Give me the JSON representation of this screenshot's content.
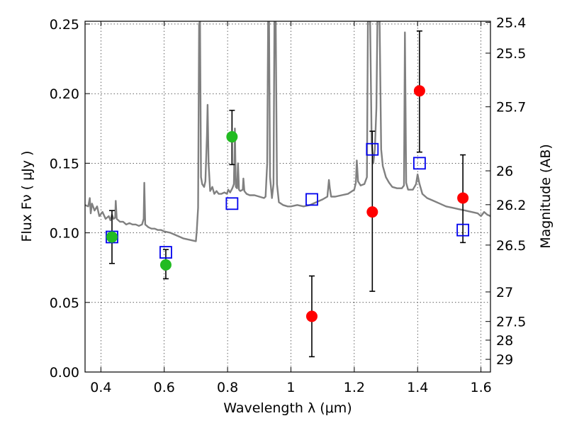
{
  "chart_data": {
    "type": "scatter",
    "xlabel": "Wavelength  λ (μm)",
    "ylabel": "Flux  Fν  ( μJy )",
    "ylabel_right": "Magnitude (AB)",
    "xlim": [
      0.35,
      1.63
    ],
    "ylim": [
      0.0,
      0.252
    ],
    "grid": true,
    "x_ticks": [
      0.4,
      0.6,
      0.8,
      1.0,
      1.2,
      1.4,
      1.6
    ],
    "x_tick_labels": [
      "0.4",
      "0.6",
      "0.8",
      "1",
      "1.2",
      "1.4",
      "1.6"
    ],
    "y_ticks": [
      0.0,
      0.05,
      0.1,
      0.15,
      0.2,
      0.25
    ],
    "y_tick_labels": [
      "0.00",
      "0.05",
      "0.10",
      "0.15",
      "0.20",
      "0.25"
    ],
    "right_ticks": [
      {
        "label": "25.4",
        "mag": 25.4
      },
      {
        "label": "25.5",
        "mag": 25.5
      },
      {
        "label": "25.7",
        "mag": 25.7
      },
      {
        "label": "26",
        "mag": 26.0
      },
      {
        "label": "26.2",
        "mag": 26.2
      },
      {
        "label": "26.5",
        "mag": 26.5
      },
      {
        "label": "27",
        "mag": 27.0
      },
      {
        "label": "27.5",
        "mag": 27.5
      },
      {
        "label": "28",
        "mag": 28.0
      },
      {
        "label": "29",
        "mag": 29.0
      }
    ],
    "series": [
      {
        "name": "green detections",
        "marker": "circle",
        "color": "#22bb22",
        "points": [
          {
            "x": 0.435,
            "y": 0.097,
            "err_low": 0.078,
            "err_high": 0.116
          },
          {
            "x": 0.605,
            "y": 0.077,
            "err_low": 0.067,
            "err_high": 0.088
          },
          {
            "x": 0.814,
            "y": 0.169,
            "err_low": 0.149,
            "err_high": 0.188
          }
        ]
      },
      {
        "name": "red detections",
        "marker": "circle",
        "color": "#ff0000",
        "points": [
          {
            "x": 1.066,
            "y": 0.04,
            "err_low": 0.011,
            "err_high": 0.069
          },
          {
            "x": 1.257,
            "y": 0.115,
            "err_low": 0.058,
            "err_high": 0.173
          },
          {
            "x": 1.406,
            "y": 0.202,
            "err_low": 0.158,
            "err_high": 0.245
          },
          {
            "x": 1.543,
            "y": 0.125,
            "err_low": 0.093,
            "err_high": 0.156
          }
        ]
      },
      {
        "name": "model synthetic photometry",
        "marker": "square",
        "color": "#0000ee",
        "points": [
          {
            "x": 0.435,
            "y": 0.097
          },
          {
            "x": 0.605,
            "y": 0.086
          },
          {
            "x": 0.814,
            "y": 0.121
          },
          {
            "x": 1.066,
            "y": 0.124
          },
          {
            "x": 1.257,
            "y": 0.16
          },
          {
            "x": 1.406,
            "y": 0.15
          },
          {
            "x": 1.543,
            "y": 0.102
          }
        ]
      }
    ],
    "model_spectrum": {
      "name": "model spectrum",
      "color": "#808080",
      "points": [
        [
          0.35,
          0.12
        ],
        [
          0.36,
          0.119
        ],
        [
          0.365,
          0.125
        ],
        [
          0.368,
          0.114
        ],
        [
          0.372,
          0.121
        ],
        [
          0.38,
          0.116
        ],
        [
          0.388,
          0.119
        ],
        [
          0.395,
          0.112
        ],
        [
          0.405,
          0.115
        ],
        [
          0.415,
          0.11
        ],
        [
          0.425,
          0.112
        ],
        [
          0.43,
          0.109
        ],
        [
          0.435,
          0.113
        ],
        [
          0.44,
          0.11
        ],
        [
          0.445,
          0.111
        ],
        [
          0.447,
          0.123
        ],
        [
          0.45,
          0.11
        ],
        [
          0.46,
          0.108
        ],
        [
          0.47,
          0.108
        ],
        [
          0.48,
          0.106
        ],
        [
          0.49,
          0.107
        ],
        [
          0.5,
          0.106
        ],
        [
          0.51,
          0.106
        ],
        [
          0.52,
          0.105
        ],
        [
          0.53,
          0.106
        ],
        [
          0.535,
          0.11
        ],
        [
          0.537,
          0.136
        ],
        [
          0.54,
          0.106
        ],
        [
          0.55,
          0.104
        ],
        [
          0.56,
          0.103
        ],
        [
          0.57,
          0.103
        ],
        [
          0.58,
          0.102
        ],
        [
          0.59,
          0.102
        ],
        [
          0.6,
          0.101
        ],
        [
          0.62,
          0.1
        ],
        [
          0.64,
          0.098
        ],
        [
          0.66,
          0.096
        ],
        [
          0.68,
          0.095
        ],
        [
          0.7,
          0.094
        ],
        [
          0.703,
          0.102
        ],
        [
          0.707,
          0.118
        ],
        [
          0.71,
          0.25
        ],
        [
          0.713,
          0.252
        ],
        [
          0.716,
          0.14
        ],
        [
          0.72,
          0.135
        ],
        [
          0.726,
          0.133
        ],
        [
          0.73,
          0.137
        ],
        [
          0.735,
          0.17
        ],
        [
          0.737,
          0.192
        ],
        [
          0.74,
          0.15
        ],
        [
          0.745,
          0.13
        ],
        [
          0.752,
          0.133
        ],
        [
          0.758,
          0.128
        ],
        [
          0.765,
          0.13
        ],
        [
          0.772,
          0.128
        ],
        [
          0.78,
          0.128
        ],
        [
          0.79,
          0.129
        ],
        [
          0.798,
          0.128
        ],
        [
          0.802,
          0.131
        ],
        [
          0.808,
          0.129
        ],
        [
          0.815,
          0.132
        ],
        [
          0.82,
          0.135
        ],
        [
          0.823,
          0.175
        ],
        [
          0.826,
          0.133
        ],
        [
          0.83,
          0.132
        ],
        [
          0.833,
          0.15
        ],
        [
          0.836,
          0.131
        ],
        [
          0.84,
          0.13
        ],
        [
          0.848,
          0.131
        ],
        [
          0.85,
          0.139
        ],
        [
          0.853,
          0.13
        ],
        [
          0.86,
          0.128
        ],
        [
          0.87,
          0.127
        ],
        [
          0.885,
          0.127
        ],
        [
          0.9,
          0.126
        ],
        [
          0.915,
          0.125
        ],
        [
          0.92,
          0.126
        ],
        [
          0.925,
          0.15
        ],
        [
          0.928,
          0.252
        ],
        [
          0.931,
          0.252
        ],
        [
          0.934,
          0.14
        ],
        [
          0.94,
          0.125
        ],
        [
          0.945,
          0.135
        ],
        [
          0.948,
          0.252
        ],
        [
          0.952,
          0.252
        ],
        [
          0.956,
          0.135
        ],
        [
          0.962,
          0.122
        ],
        [
          0.975,
          0.12
        ],
        [
          0.99,
          0.119
        ],
        [
          1.0,
          0.119
        ],
        [
          1.02,
          0.12
        ],
        [
          1.04,
          0.119
        ],
        [
          1.06,
          0.12
        ],
        [
          1.08,
          0.122
        ],
        [
          1.1,
          0.124
        ],
        [
          1.115,
          0.126
        ],
        [
          1.12,
          0.138
        ],
        [
          1.123,
          0.132
        ],
        [
          1.127,
          0.126
        ],
        [
          1.14,
          0.126
        ],
        [
          1.16,
          0.127
        ],
        [
          1.18,
          0.128
        ],
        [
          1.2,
          0.131
        ],
        [
          1.205,
          0.136
        ],
        [
          1.208,
          0.152
        ],
        [
          1.212,
          0.137
        ],
        [
          1.22,
          0.134
        ],
        [
          1.232,
          0.135
        ],
        [
          1.24,
          0.14
        ],
        [
          1.243,
          0.252
        ],
        [
          1.25,
          0.252
        ],
        [
          1.255,
          0.165
        ],
        [
          1.26,
          0.15
        ],
        [
          1.265,
          0.16
        ],
        [
          1.27,
          0.19
        ],
        [
          1.273,
          0.252
        ],
        [
          1.28,
          0.252
        ],
        [
          1.285,
          0.16
        ],
        [
          1.29,
          0.148
        ],
        [
          1.3,
          0.14
        ],
        [
          1.31,
          0.136
        ],
        [
          1.32,
          0.133
        ],
        [
          1.335,
          0.132
        ],
        [
          1.35,
          0.132
        ],
        [
          1.357,
          0.134
        ],
        [
          1.36,
          0.244
        ],
        [
          1.364,
          0.136
        ],
        [
          1.37,
          0.131
        ],
        [
          1.385,
          0.131
        ],
        [
          1.395,
          0.135
        ],
        [
          1.4,
          0.142
        ],
        [
          1.405,
          0.136
        ],
        [
          1.415,
          0.128
        ],
        [
          1.43,
          0.125
        ],
        [
          1.45,
          0.123
        ],
        [
          1.47,
          0.121
        ],
        [
          1.49,
          0.119
        ],
        [
          1.51,
          0.118
        ],
        [
          1.53,
          0.117
        ],
        [
          1.55,
          0.116
        ],
        [
          1.57,
          0.115
        ],
        [
          1.59,
          0.114
        ],
        [
          1.6,
          0.112
        ],
        [
          1.61,
          0.115
        ],
        [
          1.62,
          0.113
        ],
        [
          1.63,
          0.112
        ]
      ]
    }
  }
}
